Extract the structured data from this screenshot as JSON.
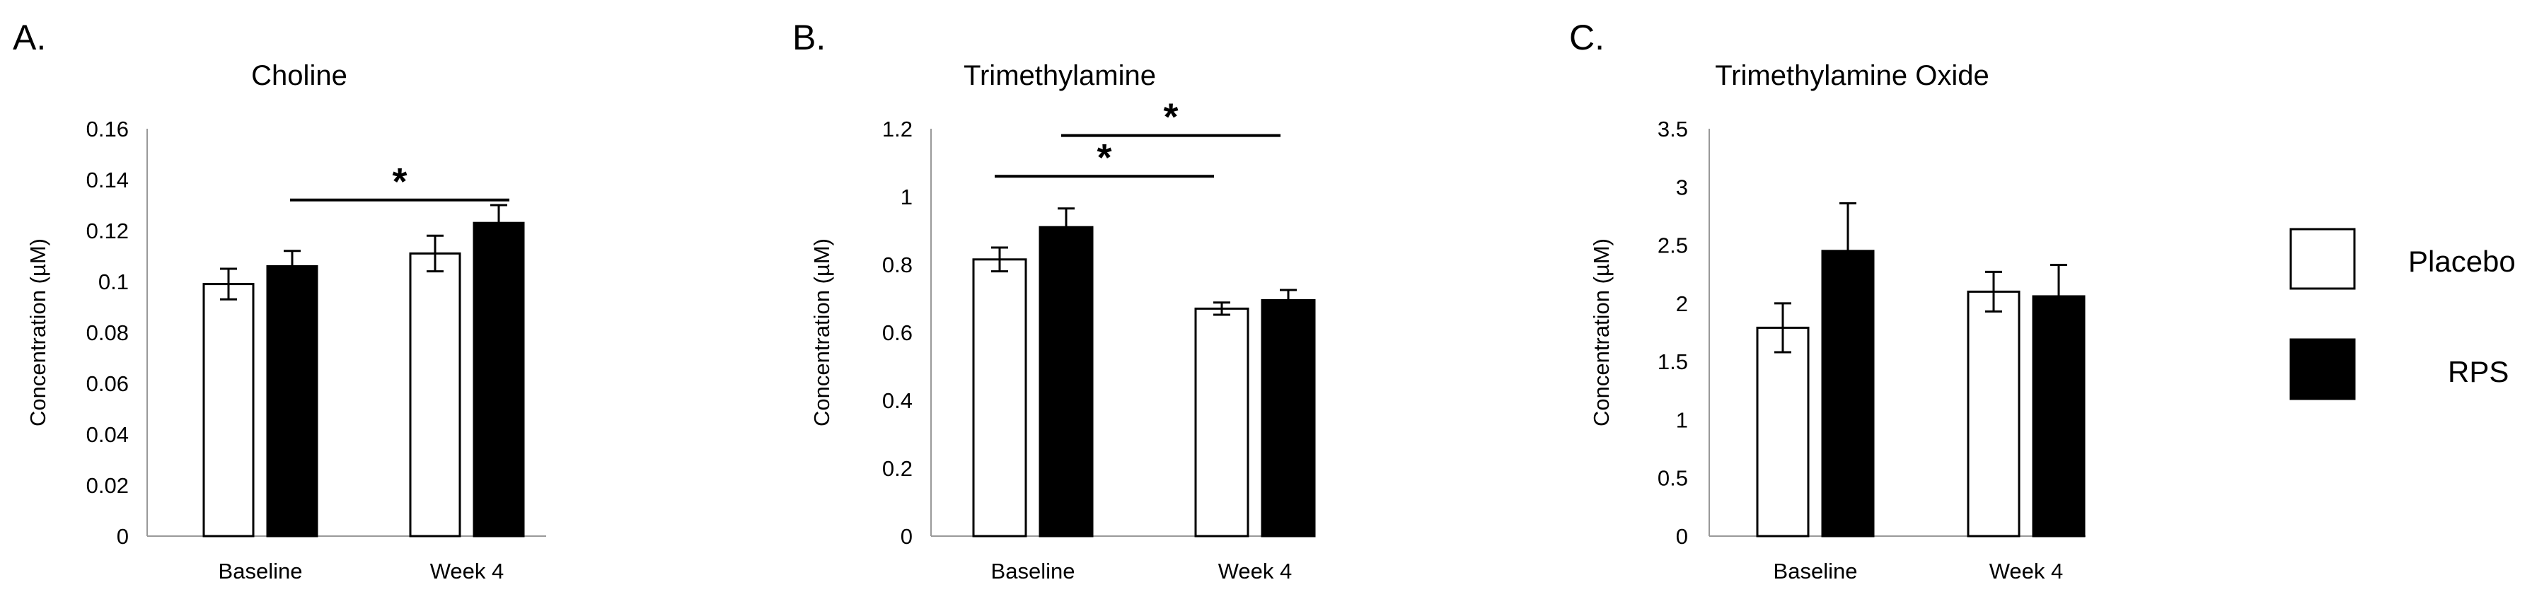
{
  "legend": [
    {
      "label": "Placebo",
      "fill": "#ffffff",
      "stroke": "#000000"
    },
    {
      "label": "RPS",
      "fill": "#000000",
      "stroke": "#000000"
    }
  ],
  "chart_data": [
    {
      "type": "bar",
      "panel_label": "A.",
      "title": "Choline",
      "ylabel": "Concentration (µM)",
      "xlabel": "",
      "categories": [
        "Baseline",
        "Week 4"
      ],
      "ylim": [
        0,
        0.16
      ],
      "yticks": [
        0,
        0.02,
        0.04,
        0.06,
        0.08,
        0.1,
        0.12,
        0.14,
        0.16
      ],
      "yticklabels": [
        "0",
        "0.02",
        "0.04",
        "0.06",
        "0.08",
        "0.1",
        "0.12",
        "0.14",
        "0.16"
      ],
      "grid": false,
      "series": [
        {
          "name": "Placebo",
          "values": [
            0.099,
            0.111
          ],
          "errors": [
            0.006,
            0.007
          ]
        },
        {
          "name": "RPS",
          "values": [
            0.106,
            0.123
          ],
          "errors": [
            0.006,
            0.007
          ]
        }
      ],
      "significance": [
        {
          "from": "Baseline",
          "to": "Week 4",
          "label": "*",
          "y": 0.132
        }
      ]
    },
    {
      "type": "bar",
      "panel_label": "B.",
      "title": "Trimethylamine",
      "ylabel": "Concentration (µM)",
      "xlabel": "",
      "categories": [
        "Baseline",
        "Week 4"
      ],
      "ylim": [
        0,
        1.2
      ],
      "yticks": [
        0,
        0.2,
        0.4,
        0.6,
        0.8,
        1,
        1.2
      ],
      "yticklabels": [
        "0",
        "0.2",
        "0.4",
        "0.6",
        "0.8",
        "1",
        "1.2"
      ],
      "grid": false,
      "series": [
        {
          "name": "Placebo",
          "values": [
            0.815,
            0.67
          ],
          "errors": [
            0.035,
            0.018
          ]
        },
        {
          "name": "RPS",
          "values": [
            0.91,
            0.695
          ],
          "errors": [
            0.055,
            0.03
          ]
        }
      ],
      "significance": [
        {
          "from": "Baseline",
          "to": "Week 4",
          "label": "*",
          "y": 1.06
        },
        {
          "from": "Baseline",
          "to": "Week 4",
          "label": "*",
          "y": 1.18
        }
      ]
    },
    {
      "type": "bar",
      "panel_label": "C.",
      "title": "Trimethylamine Oxide",
      "ylabel": "Concentration (µM)",
      "xlabel": "",
      "categories": [
        "Baseline",
        "Week 4"
      ],
      "ylim": [
        0,
        3.5
      ],
      "yticks": [
        0,
        0.5,
        1,
        1.5,
        2,
        2.5,
        3,
        3.5
      ],
      "yticklabels": [
        "0",
        "0.5",
        "1",
        "1.5",
        "2",
        "2.5",
        "3",
        "3.5"
      ],
      "grid": false,
      "series": [
        {
          "name": "Placebo",
          "values": [
            1.79,
            2.1
          ],
          "errors": [
            0.21,
            0.17
          ]
        },
        {
          "name": "RPS",
          "values": [
            2.45,
            2.06
          ],
          "errors": [
            0.41,
            0.27
          ]
        }
      ],
      "significance": []
    }
  ]
}
